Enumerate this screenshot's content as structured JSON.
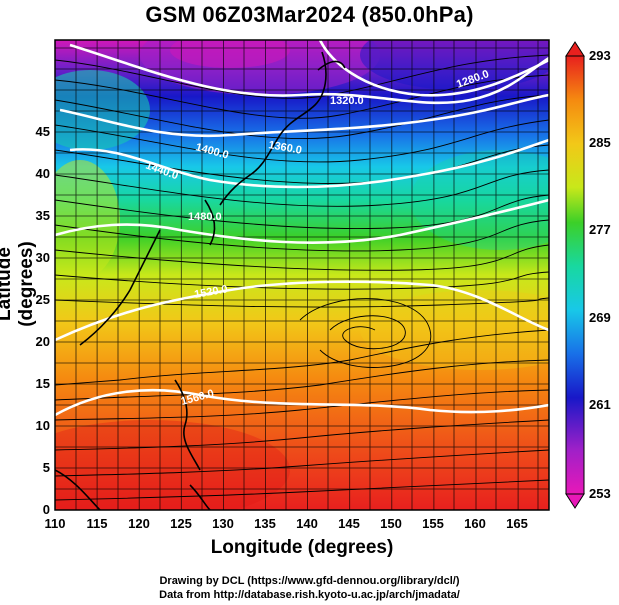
{
  "title": "GSM 06Z03Mar2024 (850.0hPa)",
  "axes": {
    "xlabel": "Longitude (degrees)",
    "ylabel": "Latitude  (degrees)",
    "x_ticks": [
      "110",
      "115",
      "120",
      "125",
      "130",
      "135",
      "140",
      "145",
      "150",
      "155",
      "160",
      "165"
    ],
    "y_ticks": [
      "0",
      "5",
      "10",
      "15",
      "20",
      "25",
      "30",
      "35",
      "40",
      "45"
    ]
  },
  "colorbar": {
    "ticks": [
      "293",
      "285",
      "277",
      "269",
      "261",
      "253"
    ],
    "colors": [
      "#e8201e",
      "#f58a10",
      "#f2c818",
      "#c8e81a",
      "#3cd028",
      "#18d8a0",
      "#18c8e8",
      "#1870e8",
      "#1818c8",
      "#a020c8",
      "#e818b8"
    ]
  },
  "contour_labels": [
    "1320.0",
    "1280.0",
    "1360.0",
    "1400.0",
    "1440.0",
    "1480.0",
    "1520.0",
    "1560.0"
  ],
  "credits": {
    "line1": "Drawing by DCL (https://www.gfd-dennou.org/library/dcl/)",
    "line2": "Data from http://database.rish.kyoto-u.ac.jp/arch/jmadata/"
  }
}
